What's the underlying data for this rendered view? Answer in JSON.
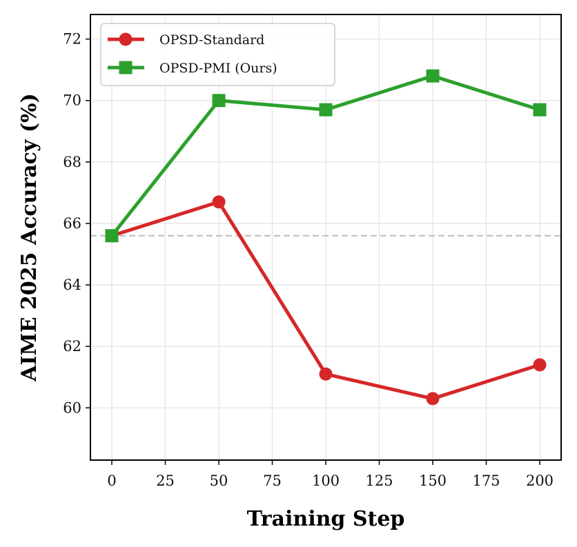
{
  "chart_data": {
    "type": "line",
    "xlabel": "Training Step",
    "ylabel": "AIME 2025 Accuracy (%)",
    "x": [
      0,
      50,
      100,
      150,
      200
    ],
    "xticks": [
      "0",
      "25",
      "50",
      "75",
      "100",
      "125",
      "150",
      "175",
      "200"
    ],
    "yticks": [
      "60",
      "62",
      "64",
      "66",
      "68",
      "70",
      "72"
    ],
    "xlim": [
      -10,
      210
    ],
    "ylim": [
      58.3,
      72.8
    ],
    "grid": true,
    "legend_position": "upper-left",
    "reference_line": {
      "y": 65.6,
      "style": "dashed",
      "color": "#bbbbbb"
    },
    "series": [
      {
        "name": "OPSD-Standard",
        "marker": "circle",
        "color": "#d62728",
        "values": [
          65.6,
          66.7,
          61.1,
          60.3,
          61.4
        ]
      },
      {
        "name": "OPSD-PMI (Ours)",
        "marker": "square",
        "color": "#2ca02c",
        "values": [
          65.6,
          70.0,
          69.7,
          70.8,
          69.7
        ]
      }
    ]
  }
}
